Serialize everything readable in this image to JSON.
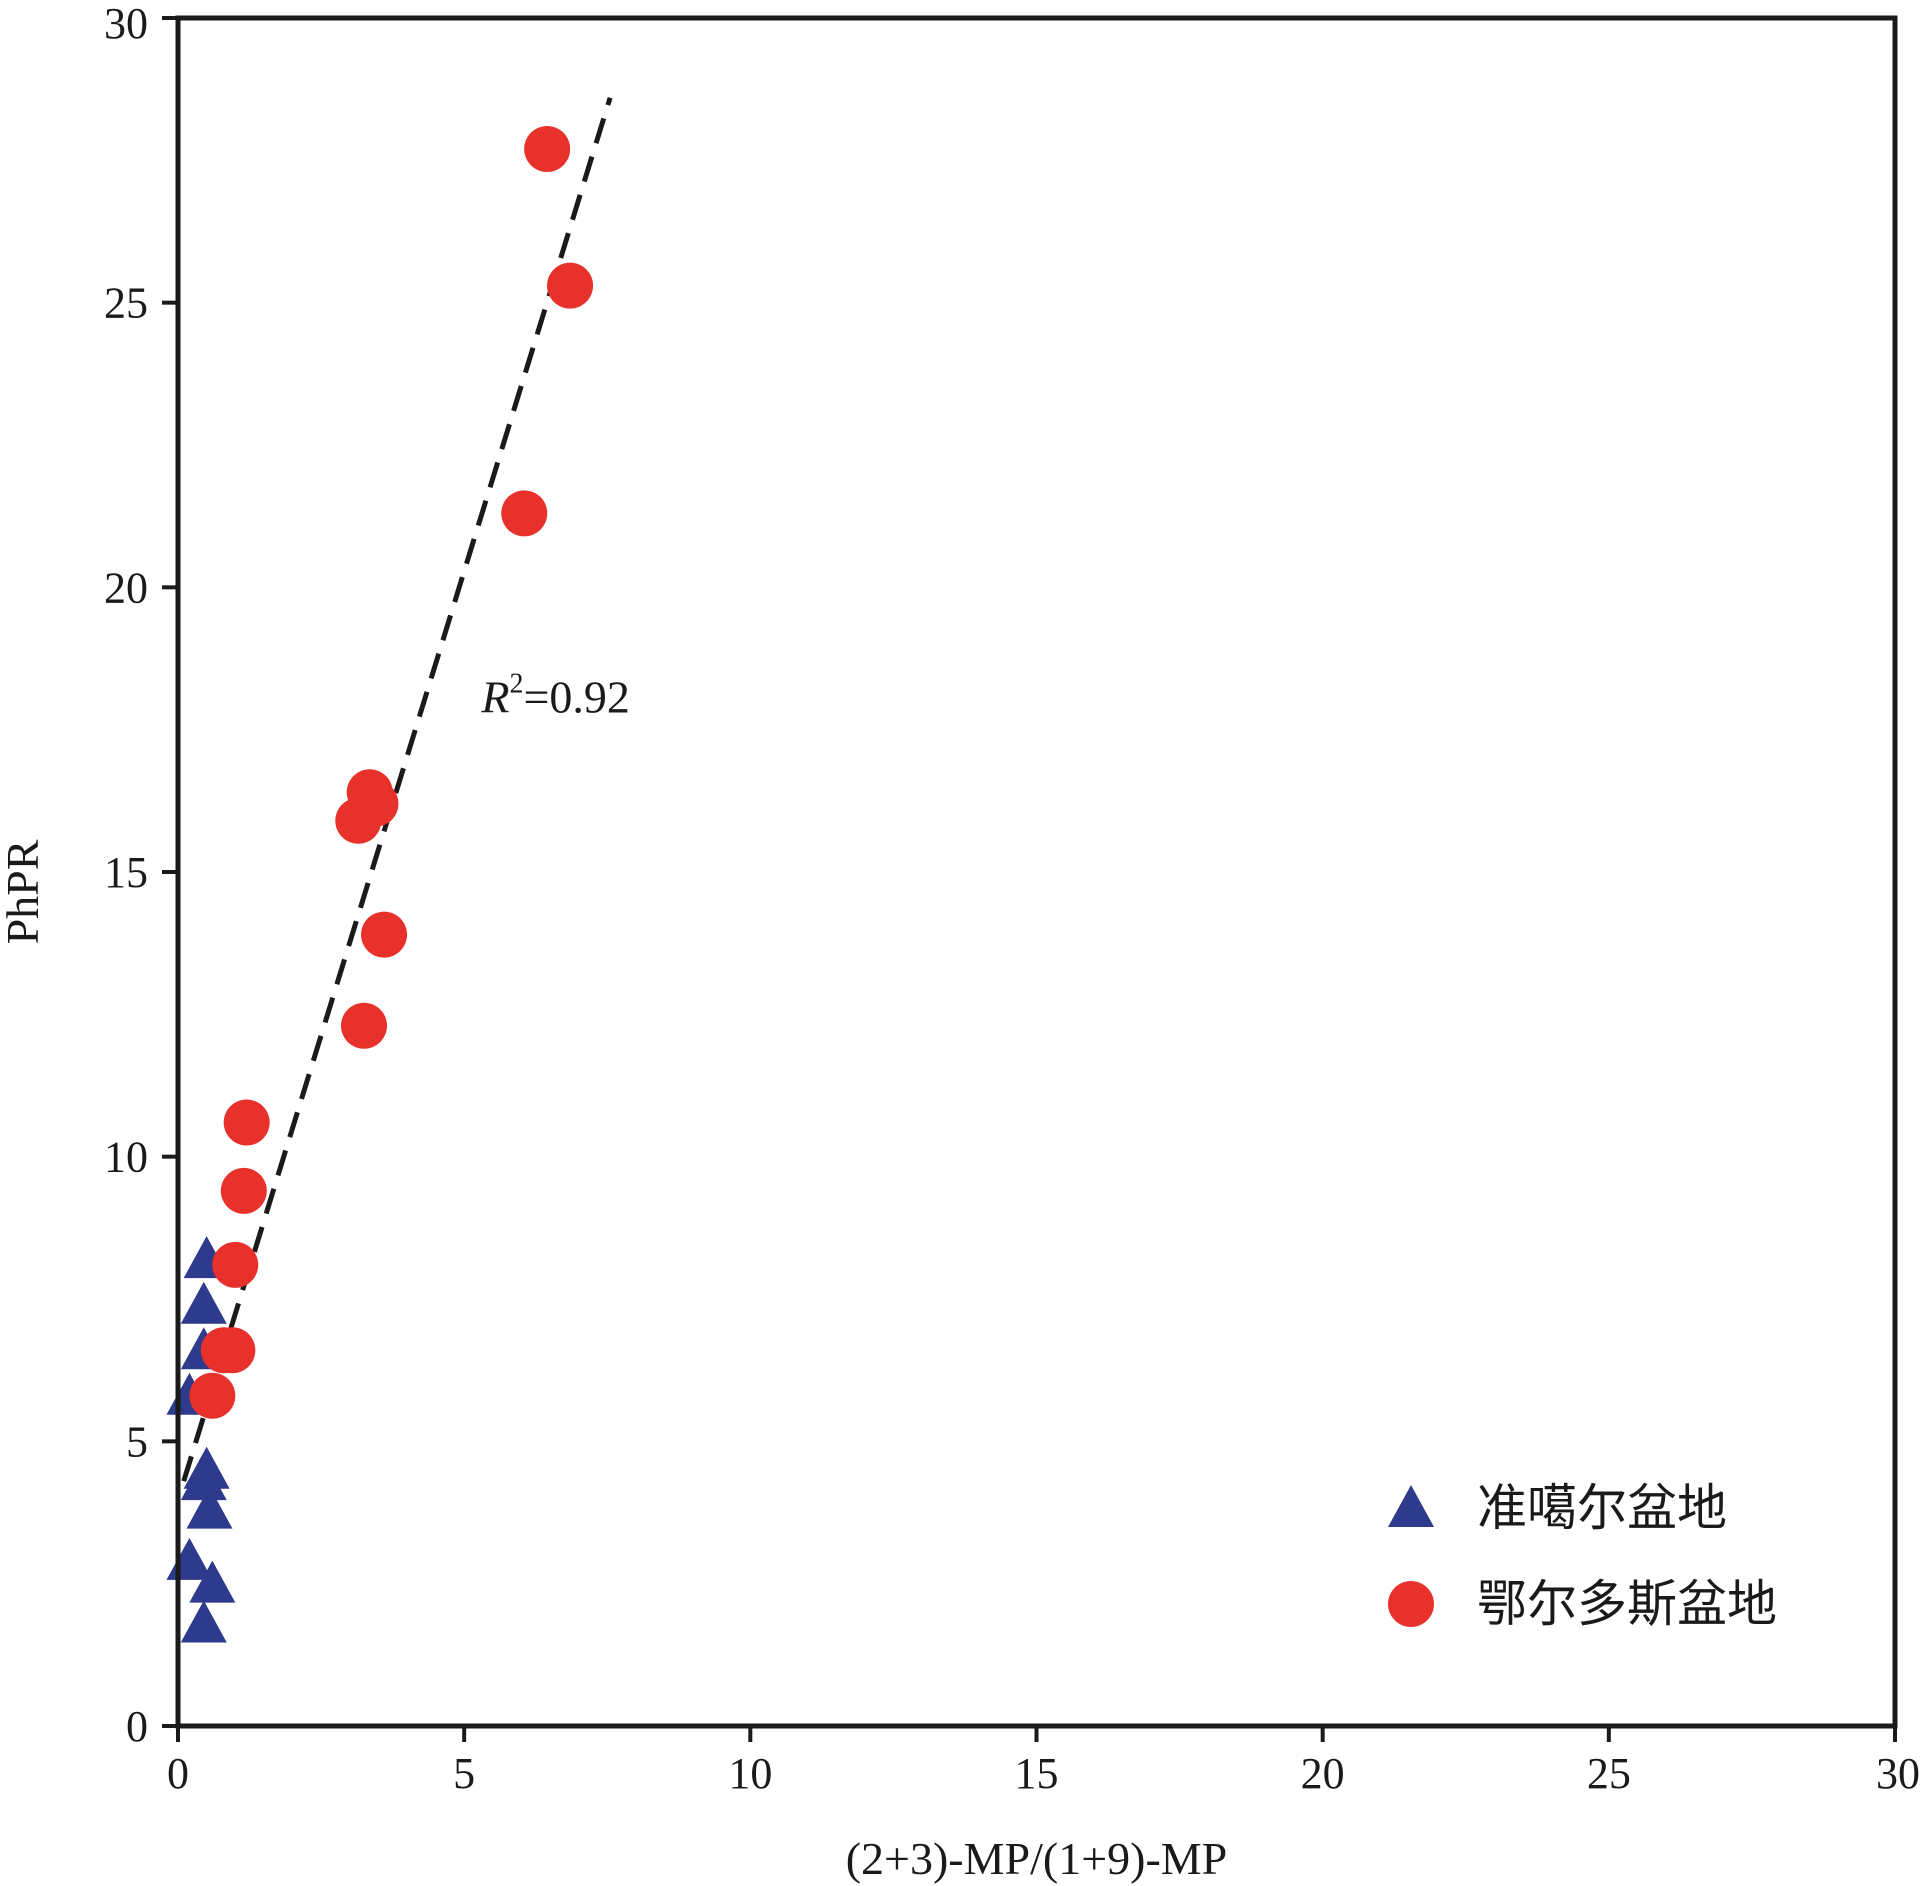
{
  "chart_data": {
    "type": "scatter",
    "xlabel": "(2+3)-MP/(1+9)-MP",
    "ylabel": "PhPR",
    "xlim": [
      0,
      30
    ],
    "ylim": [
      0,
      30
    ],
    "xticks": [
      "0",
      "5",
      "10",
      "15",
      "20",
      "25",
      "30"
    ],
    "yticks": [
      "0",
      "5",
      "10",
      "15",
      "20",
      "25",
      "30"
    ],
    "grid": false,
    "legend_position": "bottom-right",
    "series": [
      {
        "name": "准噶尔盆地",
        "marker": "triangle",
        "color": "#2e3a8c",
        "points": [
          {
            "x": 0.5,
            "y": 8.2
          },
          {
            "x": 0.45,
            "y": 7.4
          },
          {
            "x": 0.45,
            "y": 6.6
          },
          {
            "x": 0.2,
            "y": 5.8
          },
          {
            "x": 0.5,
            "y": 4.5
          },
          {
            "x": 0.45,
            "y": 4.3
          },
          {
            "x": 0.55,
            "y": 3.8
          },
          {
            "x": 0.2,
            "y": 2.9
          },
          {
            "x": 0.6,
            "y": 2.5
          },
          {
            "x": 0.45,
            "y": 1.8
          }
        ]
      },
      {
        "name": "鄂尔多斯盆地",
        "marker": "circle",
        "color": "#e8312a",
        "points": [
          {
            "x": 6.45,
            "y": 27.7
          },
          {
            "x": 6.85,
            "y": 25.3
          },
          {
            "x": 6.05,
            "y": 21.3
          },
          {
            "x": 3.35,
            "y": 16.4
          },
          {
            "x": 3.45,
            "y": 16.2
          },
          {
            "x": 3.15,
            "y": 15.9
          },
          {
            "x": 3.6,
            "y": 13.9
          },
          {
            "x": 3.25,
            "y": 12.3
          },
          {
            "x": 1.2,
            "y": 10.6
          },
          {
            "x": 1.15,
            "y": 9.4
          },
          {
            "x": 1.0,
            "y": 8.1
          },
          {
            "x": 0.8,
            "y": 6.6
          },
          {
            "x": 0.95,
            "y": 6.6
          },
          {
            "x": 0.6,
            "y": 5.8
          }
        ]
      }
    ],
    "trendline": {
      "style": "dashed",
      "x": [
        0.1,
        7.55
      ],
      "y": [
        4.3,
        28.6
      ]
    },
    "annotation": {
      "base": "R",
      "sup": "2",
      "rest": "=0.92",
      "x": 5.3,
      "y": 17.8
    }
  }
}
